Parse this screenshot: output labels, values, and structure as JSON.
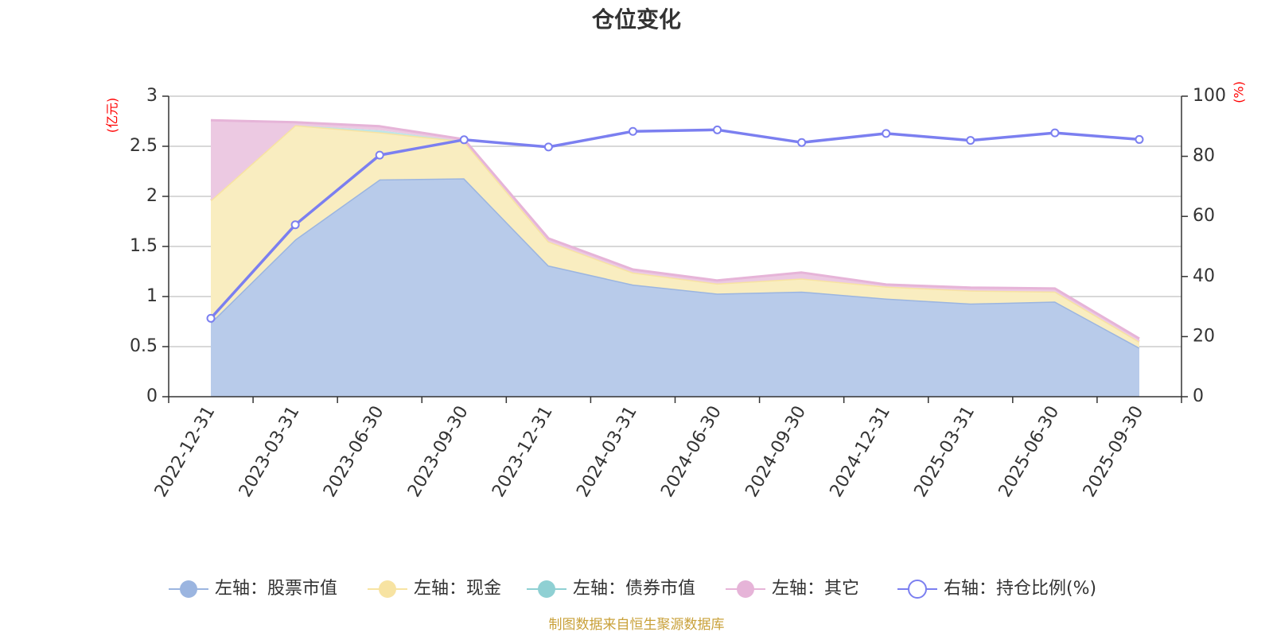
{
  "chart_data": {
    "type": "area",
    "title": "仓位变化",
    "categories": [
      "2022-12-31",
      "2023-03-31",
      "2023-06-30",
      "2023-09-30",
      "2023-12-31",
      "2024-03-31",
      "2024-06-30",
      "2024-09-30",
      "2024-12-31",
      "2025-03-31",
      "2025-06-30",
      "2025-09-30"
    ],
    "left_axis": {
      "unit": "(亿元)",
      "ylim": [
        0,
        3
      ],
      "ticks": [
        "0",
        "0.5",
        "1",
        "1.5",
        "2",
        "2.5",
        "3"
      ]
    },
    "right_axis": {
      "unit": "(%)",
      "ylim": [
        0,
        100
      ],
      "ticks": [
        "0",
        "20",
        "40",
        "60",
        "80",
        "100"
      ]
    },
    "grid": true,
    "legend_position": "bottom",
    "series": [
      {
        "name": "左轴：股票市值",
        "axis": "left",
        "kind": "stacked-area",
        "color": "#9bb5e0",
        "fill": "#b8cbea",
        "values": [
          0.74,
          1.57,
          2.17,
          2.18,
          1.31,
          1.12,
          1.03,
          1.05,
          0.98,
          0.93,
          0.95,
          0.49
        ]
      },
      {
        "name": "左轴：现金",
        "axis": "left",
        "kind": "stacked-area",
        "color": "#f7e3a2",
        "fill": "#f9edc0",
        "values": [
          1.22,
          1.14,
          0.47,
          0.37,
          0.24,
          0.12,
          0.1,
          0.13,
          0.12,
          0.13,
          0.1,
          0.06
        ]
      },
      {
        "name": "左轴：债券市值",
        "axis": "left",
        "kind": "stacked-area",
        "color": "#8fd0d3",
        "fill": "#bfe5e6",
        "values": [
          0,
          0,
          0.02,
          0,
          0,
          0,
          0,
          0,
          0,
          0,
          0,
          0
        ]
      },
      {
        "name": "左轴：其它",
        "axis": "left",
        "kind": "stacked-area",
        "color": "#e6b4d8",
        "fill": "#ecc9e2",
        "values": [
          0.8,
          0.03,
          0.04,
          0.02,
          0.03,
          0.03,
          0.03,
          0.06,
          0.02,
          0.03,
          0.03,
          0.03
        ]
      },
      {
        "name": "右轴：持仓比例(%)",
        "axis": "right",
        "kind": "line",
        "color": "#7b7ff0",
        "values": [
          26.1,
          57.2,
          80.4,
          85.5,
          83.1,
          88.3,
          88.8,
          84.6,
          87.6,
          85.3,
          87.8,
          85.6
        ]
      }
    ],
    "source": "制图数据来自恒生聚源数据库"
  }
}
